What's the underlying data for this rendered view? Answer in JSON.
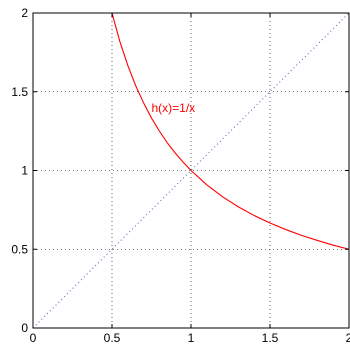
{
  "chart_data": {
    "type": "line",
    "xlim": [
      0,
      2
    ],
    "ylim": [
      0,
      2
    ],
    "grid": true,
    "x_ticks": [
      "0",
      "0.5",
      "1",
      "1.5",
      "2"
    ],
    "y_ticks": [
      "0",
      "0.5",
      "1",
      "1.5",
      "2"
    ],
    "x_tick_values": [
      0,
      0.5,
      1,
      1.5,
      2
    ],
    "y_tick_values": [
      0,
      0.5,
      1,
      1.5,
      2
    ],
    "series": [
      {
        "name": "h(x)=1/x",
        "color": "#ff0000",
        "style": "solid",
        "x": [
          0.5,
          0.55,
          0.6,
          0.65,
          0.7,
          0.75,
          0.8,
          0.85,
          0.9,
          0.95,
          1.0,
          1.1,
          1.2,
          1.3,
          1.4,
          1.5,
          1.6,
          1.7,
          1.8,
          1.9,
          2.0
        ],
        "y": [
          2.0,
          1.818,
          1.667,
          1.538,
          1.429,
          1.333,
          1.25,
          1.176,
          1.111,
          1.053,
          1.0,
          0.909,
          0.833,
          0.769,
          0.714,
          0.667,
          0.625,
          0.588,
          0.556,
          0.526,
          0.5
        ]
      },
      {
        "color": "#4f6fbf",
        "style": "dotted",
        "x": [
          0,
          2
        ],
        "y": [
          0,
          2
        ]
      }
    ],
    "annotations": [
      {
        "text": "h(x)=1/x",
        "x": 0.75,
        "y": 1.37,
        "color": "#ff0000"
      }
    ]
  }
}
